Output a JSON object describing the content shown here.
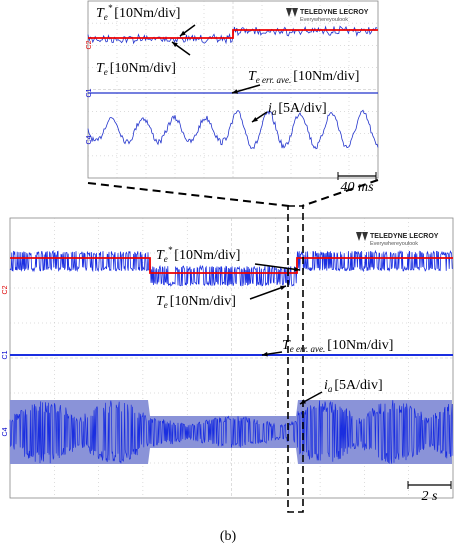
{
  "top_panel": {
    "brand": "TELEDYNE LECROY",
    "tagline": "Everywhereyoulook",
    "channels": [
      "C2",
      "C1",
      "C4"
    ],
    "te_ref": {
      "symbol": "T",
      "subscript": "e",
      "superscript": "*",
      "scale": "[10Nm/div]"
    },
    "te": {
      "symbol": "T",
      "subscript": "e",
      "scale": "[10Nm/div]"
    },
    "te_err": {
      "symbol": "T",
      "subscript": "e err. ave.",
      "scale": "[10Nm/div]"
    },
    "ia": {
      "symbol": "i",
      "subscript": "a",
      "scale": "[5A/div]"
    },
    "time_scale": "40 ms"
  },
  "bottom_panel": {
    "brand": "TELEDYNE LECROY",
    "tagline": "Everywhereyoulook",
    "channels": [
      "C2",
      "C1",
      "C4"
    ],
    "te_ref": {
      "symbol": "T",
      "subscript": "e",
      "superscript": "*",
      "scale": "[10Nm/div]"
    },
    "te": {
      "symbol": "T",
      "subscript": "e",
      "scale": "[10Nm/div]"
    },
    "te_err": {
      "symbol": "T",
      "subscript": "e err. ave.",
      "scale": "[10Nm/div]"
    },
    "ia": {
      "symbol": "i",
      "subscript": "a",
      "scale": "[5A/div]"
    },
    "time_scale": "2 s"
  },
  "caption": "(b)"
}
